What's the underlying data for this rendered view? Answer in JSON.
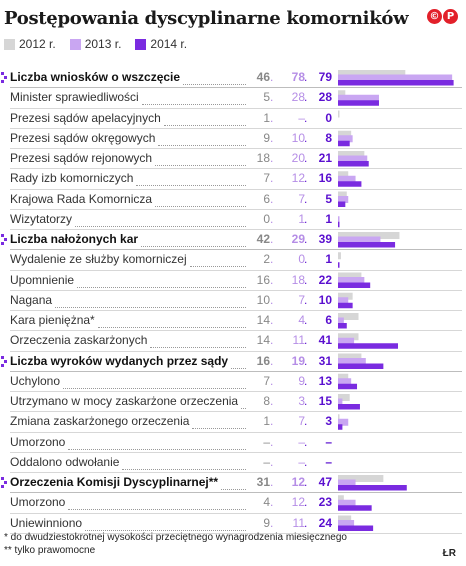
{
  "title": "Postępowania dyscyplinarne komorników",
  "logo": [
    "©",
    "P"
  ],
  "legend": [
    {
      "label": "2012 r.",
      "color": "#d6d6d6"
    },
    {
      "label": "2013 r.",
      "color": "#c9a6f2"
    },
    {
      "label": "2014 r.",
      "color": "#7a2be0"
    }
  ],
  "chart_data": {
    "type": "bar",
    "orientation": "horizontal",
    "series_names": [
      "2012 r.",
      "2013 r.",
      "2014 r."
    ],
    "rows": [
      {
        "label": "Liczba wniosków o wszczęcie",
        "head": true,
        "values": [
          46,
          78,
          79
        ],
        "text": [
          "46",
          "78",
          "79"
        ]
      },
      {
        "label": "Minister sprawiedliwości",
        "head": false,
        "values": [
          5,
          28,
          28
        ],
        "text": [
          "5",
          "28",
          "28"
        ]
      },
      {
        "label": "Prezesi sądów apelacyjnych",
        "head": false,
        "values": [
          1,
          0,
          0
        ],
        "text": [
          "1",
          "–",
          "0"
        ]
      },
      {
        "label": "Prezesi sądów okręgowych",
        "head": false,
        "values": [
          9,
          10,
          8
        ],
        "text": [
          "9",
          "10",
          "8"
        ]
      },
      {
        "label": "Prezesi sądów rejonowych",
        "head": false,
        "values": [
          18,
          20,
          21
        ],
        "text": [
          "18",
          "20",
          "21"
        ]
      },
      {
        "label": "Rady izb komorniczych",
        "head": false,
        "values": [
          7,
          12,
          16
        ],
        "text": [
          "7",
          "12",
          "16"
        ]
      },
      {
        "label": "Krajowa Rada Komornicza",
        "head": false,
        "values": [
          6,
          7,
          5
        ],
        "text": [
          "6",
          "7",
          "5"
        ]
      },
      {
        "label": "Wizytatorzy",
        "head": false,
        "values": [
          0,
          1,
          1
        ],
        "text": [
          "0",
          "1",
          "1"
        ]
      },
      {
        "label": "Liczba nałożonych kar",
        "head": true,
        "values": [
          42,
          29,
          39
        ],
        "text": [
          "42",
          "29",
          "39"
        ]
      },
      {
        "label": "Wydalenie ze służby komorniczej",
        "head": false,
        "values": [
          2,
          0,
          1
        ],
        "text": [
          "2",
          "0",
          "1"
        ]
      },
      {
        "label": "Upomnienie",
        "head": false,
        "values": [
          16,
          18,
          22
        ],
        "text": [
          "16",
          "18",
          "22"
        ]
      },
      {
        "label": "Nagana",
        "head": false,
        "values": [
          10,
          7,
          10
        ],
        "text": [
          "10",
          "7",
          "10"
        ]
      },
      {
        "label": "Kara pieniężna*",
        "head": false,
        "values": [
          14,
          4,
          6
        ],
        "text": [
          "14",
          "4",
          "6"
        ]
      },
      {
        "label": "Orzeczenia zaskarżonych",
        "head": false,
        "values": [
          14,
          11,
          41
        ],
        "text": [
          "14",
          "11",
          "41"
        ]
      },
      {
        "label": "Liczba wyroków wydanych przez sądy",
        "head": true,
        "values": [
          16,
          19,
          31
        ],
        "text": [
          "16",
          "19",
          "31"
        ]
      },
      {
        "label": "Uchylono",
        "head": false,
        "values": [
          7,
          9,
          13
        ],
        "text": [
          "7",
          "9",
          "13"
        ]
      },
      {
        "label": "Utrzymano w mocy zaskarżone orzeczenia",
        "head": false,
        "values": [
          8,
          3,
          15
        ],
        "text": [
          "8",
          "3",
          "15"
        ]
      },
      {
        "label": "Zmiana zaskarżonego orzeczenia",
        "head": false,
        "values": [
          1,
          7,
          3
        ],
        "text": [
          "1",
          "7",
          "3"
        ]
      },
      {
        "label": "Umorzono",
        "head": false,
        "values": [
          0,
          0,
          0
        ],
        "text": [
          "–",
          "–",
          "–"
        ]
      },
      {
        "label": "Oddalono odwołanie",
        "head": false,
        "values": [
          0,
          0,
          0
        ],
        "text": [
          "–",
          "–",
          "–"
        ]
      },
      {
        "label": "Orzeczenia Komisji Dyscyplinarnej**",
        "head": true,
        "values": [
          31,
          12,
          47
        ],
        "text": [
          "31",
          "12",
          "47"
        ]
      },
      {
        "label": "Umorzono",
        "head": false,
        "values": [
          4,
          12,
          23
        ],
        "text": [
          "4",
          "12",
          "23"
        ]
      },
      {
        "label": "Uniewinniono",
        "head": false,
        "values": [
          9,
          11,
          24
        ],
        "text": [
          "9",
          "11",
          "24"
        ]
      }
    ],
    "xlim": [
      0,
      82
    ]
  },
  "footnotes": [
    "* do dwudziestokrotnej wysokości przeciętnego wynagrodzenia miesięcznego",
    "** tylko prawomocne"
  ],
  "credit": "ŁR"
}
